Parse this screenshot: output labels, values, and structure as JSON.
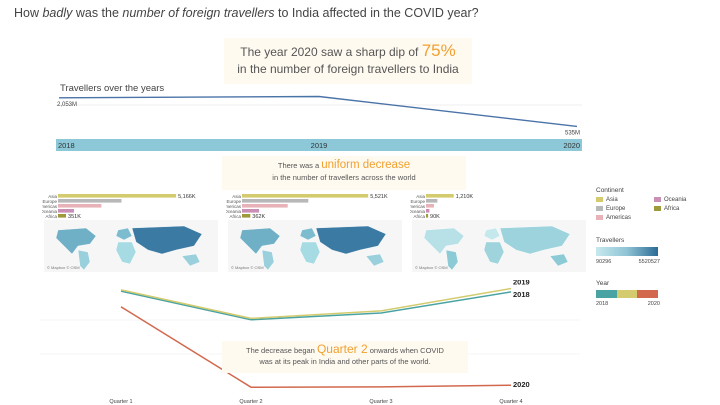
{
  "title": {
    "pre": "How ",
    "em1": "badly",
    "mid": " was the ",
    "em2": "number of foreign travellers",
    "post": " to India affected in the COVID year?"
  },
  "callout1": {
    "pre": "The year 2020 saw a sharp dip of ",
    "accent": "75%",
    "line2": "in the number of foreign travellers to India"
  },
  "callout2": {
    "pre": "There was a ",
    "accent": "uniform decrease",
    "line2": "in the number of travellers across the world"
  },
  "callout3": {
    "pre": "The decrease began ",
    "accent": "Quarter 2",
    "post": " onwards when COVID",
    "line2": "was at its peak in India and other parts of the world."
  },
  "travellers_label": "Travellers over the years",
  "map_credit": "© Mapbox © OSM",
  "legend": {
    "continent_title": "Continent",
    "continents": [
      {
        "name": "Asia",
        "color": "#d3cb6d"
      },
      {
        "name": "Oceania",
        "color": "#c98fb5"
      },
      {
        "name": "Europe",
        "color": "#b8b8b8"
      },
      {
        "name": "Africa",
        "color": "#9c9a3a"
      },
      {
        "name": "Americas",
        "color": "#e8b3b8"
      }
    ],
    "travellers_title": "Travellers",
    "travellers_min": "90296",
    "travellers_max": "5520527",
    "year_title": "Year",
    "year_min": "2018",
    "year_max": "2020"
  },
  "chart_data": [
    {
      "type": "line",
      "title": "Travellers over the years",
      "x": [
        "2018",
        "2019",
        "2020"
      ],
      "values": [
        2053,
        2123,
        535
      ],
      "data_labels": [
        "2,053M",
        "2,123M",
        "535M"
      ],
      "color": "#4a73a8"
    },
    {
      "type": "bar",
      "title": "Travellers by continent 2018",
      "categories": [
        "Asia",
        "Europe",
        "Americas",
        "Oceania",
        "Africa"
      ],
      "values": [
        5166,
        2780,
        1900,
        700,
        351
      ],
      "data_labels": [
        "5,166K",
        "",
        "",
        "",
        "351K"
      ]
    },
    {
      "type": "bar",
      "title": "Travellers by continent 2019",
      "categories": [
        "Asia",
        "Europe",
        "Americas",
        "Oceania",
        "Africa"
      ],
      "values": [
        5521,
        2900,
        2000,
        750,
        362
      ],
      "data_labels": [
        "5,521K",
        "",
        "",
        "",
        "362K"
      ]
    },
    {
      "type": "bar",
      "title": "Travellers by continent 2020",
      "categories": [
        "Asia",
        "Europe",
        "Americas",
        "Oceania",
        "Africa"
      ],
      "values": [
        1210,
        500,
        350,
        150,
        90
      ],
      "data_labels": [
        "1,210K",
        "",
        "",
        "",
        "90K"
      ]
    },
    {
      "type": "line",
      "title": "Travellers by quarter",
      "categories": [
        "Quarter 1",
        "Quarter 2",
        "Quarter 3",
        "Quarter 4"
      ],
      "series": [
        {
          "name": "2018",
          "values": [
            1480,
            1060,
            1160,
            1470
          ],
          "color": "#4aa3a3"
        },
        {
          "name": "2019",
          "values": [
            1500,
            1080,
            1190,
            1520
          ],
          "color": "#d3cb6d"
        },
        {
          "name": "2020",
          "values": [
            1250,
            70,
            75,
            100
          ],
          "color": "#d2694e"
        }
      ],
      "ylim": [
        0,
        1600
      ]
    }
  ]
}
